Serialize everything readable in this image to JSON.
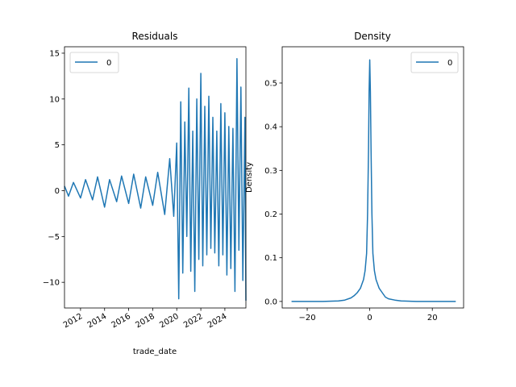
{
  "chart_data": [
    {
      "type": "line",
      "title": "Residuals",
      "xlabel": "trade_date",
      "ylabel": "",
      "xlim": [
        "2010-09-01",
        "2025-10-01"
      ],
      "ylim": [
        -12.8,
        15.7
      ],
      "xticks": [
        "2012",
        "2014",
        "2016",
        "2018",
        "2020",
        "2022",
        "2024"
      ],
      "yticks": [
        -10,
        -5,
        0,
        5,
        10,
        15
      ],
      "legend": {
        "position": "top-left",
        "entries": [
          "0"
        ]
      },
      "color": "#1f77b4",
      "grid": false,
      "series": [
        {
          "name": "0",
          "x": [
            "2010-09-01",
            "2011-01-01",
            "2011-06-01",
            "2012-01-01",
            "2012-06-01",
            "2013-01-01",
            "2013-06-01",
            "2014-01-01",
            "2014-06-01",
            "2015-01-01",
            "2015-06-01",
            "2016-01-01",
            "2016-06-01",
            "2017-01-01",
            "2017-06-01",
            "2018-01-01",
            "2018-06-01",
            "2019-01-01",
            "2019-06-01",
            "2019-10-01",
            "2020-01-01",
            "2020-03-01",
            "2020-05-01",
            "2020-07-01",
            "2020-09-01",
            "2020-11-01",
            "2021-01-01",
            "2021-03-01",
            "2021-05-01",
            "2021-07-01",
            "2021-09-01",
            "2021-11-01",
            "2022-01-01",
            "2022-03-01",
            "2022-05-01",
            "2022-07-01",
            "2022-09-01",
            "2022-11-01",
            "2023-01-01",
            "2023-03-01",
            "2023-05-01",
            "2023-07-01",
            "2023-09-01",
            "2023-11-01",
            "2024-01-01",
            "2024-03-01",
            "2024-05-01",
            "2024-07-01",
            "2024-09-01",
            "2024-11-01",
            "2025-01-01",
            "2025-03-01",
            "2025-05-01",
            "2025-07-01",
            "2025-09-01",
            "2025-10-01"
          ],
          "values": [
            0.5,
            -0.6,
            0.9,
            -0.8,
            1.2,
            -1.0,
            1.5,
            -1.8,
            1.2,
            -1.2,
            1.6,
            -1.4,
            1.8,
            -1.9,
            1.5,
            -1.6,
            2.0,
            -2.6,
            3.5,
            -2.8,
            5.2,
            -11.8,
            9.7,
            -9.0,
            7.5,
            -5.0,
            11.2,
            -8.8,
            6.5,
            -11.0,
            10.0,
            -7.5,
            12.8,
            -8.2,
            9.2,
            -7.0,
            10.3,
            -6.3,
            8.0,
            -6.8,
            6.5,
            -8.2,
            9.5,
            -7.0,
            8.5,
            -9.2,
            7.0,
            -8.5,
            6.8,
            -11.0,
            14.4,
            -6.5,
            11.3,
            -9.8,
            8.0,
            -12.0
          ]
        }
      ]
    },
    {
      "type": "line",
      "title": "Density",
      "xlabel": "",
      "ylabel": "Density",
      "xlim": [
        -28,
        30
      ],
      "ylim": [
        -0.015,
        0.583
      ],
      "xticks": [
        -20,
        0,
        20
      ],
      "yticks": [
        0.0,
        0.1,
        0.2,
        0.3,
        0.4,
        0.5
      ],
      "legend": {
        "position": "top-right",
        "entries": [
          "0"
        ]
      },
      "color": "#1f77b4",
      "grid": false,
      "series": [
        {
          "name": "0",
          "x": [
            -25,
            -15,
            -10,
            -8,
            -6,
            -5,
            -4,
            -3,
            -2,
            -1.5,
            -1,
            -0.7,
            -0.4,
            -0.2,
            0,
            0.2,
            0.4,
            0.7,
            1,
            1.5,
            2,
            3,
            4,
            5,
            6,
            8,
            10,
            15,
            27.5
          ],
          "values": [
            0.0,
            0.0,
            0.001,
            0.003,
            0.008,
            0.013,
            0.02,
            0.03,
            0.05,
            0.07,
            0.11,
            0.2,
            0.35,
            0.48,
            0.553,
            0.48,
            0.35,
            0.2,
            0.11,
            0.07,
            0.05,
            0.03,
            0.02,
            0.01,
            0.006,
            0.003,
            0.001,
            0.0,
            0.0
          ]
        }
      ]
    }
  ]
}
